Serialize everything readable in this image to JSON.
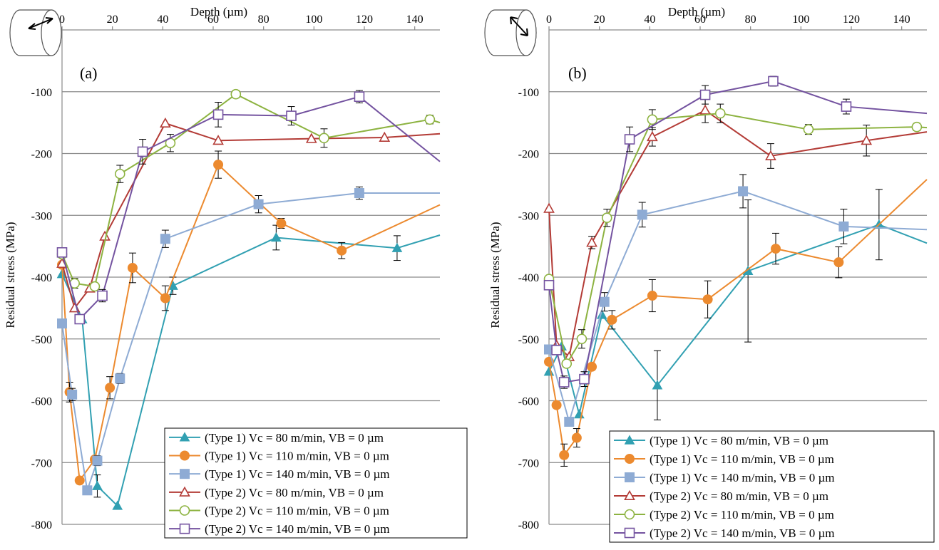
{
  "chart_data": [
    {
      "type": "line",
      "panel_label": "(a)",
      "xlabel": "Depth (µm)",
      "ylabel": "Residual stress (MPa)",
      "xlim": [
        0,
        150
      ],
      "ylim": [
        -800,
        0
      ],
      "xticks": [
        "0",
        "20",
        "40",
        "60",
        "80",
        "100",
        "120",
        "140"
      ],
      "yticks": [
        "-100",
        "-200",
        "-300",
        "-400",
        "-500",
        "-600",
        "-700",
        "-800"
      ],
      "grid": "horizontal",
      "x_axis_position": "top",
      "legend_position": "bottom-right",
      "series": [
        {
          "name": "(Type 1) Vc = 80 m/min, VB = 0 µm",
          "color": "#31a0b2",
          "marker": "triangle-filled",
          "points": [
            [
              0,
              -395
            ],
            [
              8,
              -468
            ],
            [
              14,
              -738
            ],
            [
              22,
              -770
            ],
            [
              44,
              -414
            ],
            [
              85,
              -336
            ],
            [
              133,
              -353
            ],
            [
              150,
              -332
            ]
          ],
          "errors": [
            0,
            0,
            18,
            0,
            14,
            20,
            20,
            0
          ]
        },
        {
          "name": "(Type 1) Vc = 110 m/min, VB = 0 µm",
          "color": "#ec8a2f",
          "marker": "circle-filled",
          "points": [
            [
              0,
              -380
            ],
            [
              3,
              -586
            ],
            [
              7,
              -729
            ],
            [
              13,
              -695
            ],
            [
              19,
              -579
            ],
            [
              28,
              -385
            ],
            [
              41,
              -434
            ],
            [
              62,
              -218
            ],
            [
              87,
              -313
            ],
            [
              111,
              -357
            ],
            [
              150,
              -283
            ]
          ],
          "errors": [
            0,
            16,
            0,
            0,
            18,
            24,
            20,
            22,
            8,
            13,
            0
          ]
        },
        {
          "name": "(Type 1) Vc = 140 m/min, VB = 0 µm",
          "color": "#8eabd4",
          "marker": "square-filled",
          "points": [
            [
              0,
              -475
            ],
            [
              4,
              -590
            ],
            [
              10,
              -745
            ],
            [
              14,
              -697
            ],
            [
              23,
              -564
            ],
            [
              41,
              -338
            ],
            [
              78,
              -282
            ],
            [
              118,
              -264
            ],
            [
              150,
              -264
            ]
          ],
          "errors": [
            0,
            10,
            0,
            8,
            8,
            14,
            14,
            10,
            0
          ]
        },
        {
          "name": "(Type 2) Vc = 80 m/min, VB = 0 µm",
          "color": "#b33b36",
          "marker": "triangle-open",
          "points": [
            [
              0,
              -378
            ],
            [
              5,
              -450
            ],
            [
              11,
              -418
            ],
            [
              17,
              -334
            ],
            [
              41,
              -151
            ],
            [
              62,
              -179
            ],
            [
              99,
              -176
            ],
            [
              128,
              -174
            ],
            [
              150,
              -168
            ]
          ],
          "errors": [
            0,
            0,
            0,
            0,
            0,
            0,
            0,
            0,
            0
          ]
        },
        {
          "name": "(Type 2) Vc = 110 m/min, VB = 0 µm",
          "color": "#8db341",
          "marker": "circle-open",
          "points": [
            [
              0,
              -363
            ],
            [
              5,
              -410
            ],
            [
              13,
              -415
            ],
            [
              23,
              -233
            ],
            [
              43,
              -183
            ],
            [
              69,
              -104
            ],
            [
              104,
              -175
            ],
            [
              146,
              -145
            ],
            [
              150,
              -150
            ]
          ],
          "errors": [
            0,
            8,
            0,
            14,
            14,
            6,
            15,
            7,
            0
          ]
        },
        {
          "name": "(Type 2) Vc = 140 m/min, VB = 0 µm",
          "color": "#7453a0",
          "marker": "square-open",
          "points": [
            [
              0,
              -360
            ],
            [
              7,
              -468
            ],
            [
              16,
              -430
            ],
            [
              32,
              -197
            ],
            [
              62,
              -137
            ],
            [
              91,
              -139
            ],
            [
              118,
              -108
            ],
            [
              150,
              -213
            ]
          ],
          "errors": [
            0,
            0,
            10,
            20,
            20,
            15,
            10,
            0
          ]
        }
      ]
    },
    {
      "type": "line",
      "panel_label": "(b)",
      "xlabel": "Depth (µm)",
      "ylabel": "Residual stress (MPa)",
      "xlim": [
        0,
        150
      ],
      "ylim": [
        -800,
        0
      ],
      "xticks": [
        "0",
        "20",
        "40",
        "60",
        "80",
        "100",
        "120",
        "140"
      ],
      "yticks": [
        "-100",
        "-200",
        "-300",
        "-400",
        "-500",
        "-600",
        "-700",
        "-800"
      ],
      "grid": "horizontal",
      "x_axis_position": "top",
      "legend_position": "bottom-right",
      "series": [
        {
          "name": "(Type 1) Vc = 80 m/min, VB = 0 µm",
          "color": "#31a0b2",
          "marker": "triangle-filled",
          "points": [
            [
              0,
              -553
            ],
            [
              5,
              -512
            ],
            [
              12,
              -622
            ],
            [
              21,
              -461
            ],
            [
              43,
              -575
            ],
            [
              79,
              -390
            ],
            [
              131,
              -315
            ],
            [
              150,
              -345
            ]
          ],
          "errors": [
            0,
            0,
            0,
            0,
            56,
            115,
            57,
            0
          ]
        },
        {
          "name": "(Type 1) Vc = 110 m/min, VB = 0 µm",
          "color": "#ec8a2f",
          "marker": "circle-filled",
          "points": [
            [
              0,
              -537
            ],
            [
              3,
              -607
            ],
            [
              6,
              -688
            ],
            [
              11,
              -660
            ],
            [
              17,
              -545
            ],
            [
              25,
              -469
            ],
            [
              41,
              -430
            ],
            [
              63,
              -436
            ],
            [
              90,
              -354
            ],
            [
              115,
              -376
            ],
            [
              150,
              -242
            ]
          ],
          "errors": [
            0,
            0,
            18,
            15,
            0,
            15,
            26,
            30,
            25,
            25,
            0
          ]
        },
        {
          "name": "(Type 1) Vc = 140 m/min, VB = 0 µm",
          "color": "#8eabd4",
          "marker": "square-filled",
          "points": [
            [
              0,
              -517
            ],
            [
              8,
              -634
            ],
            [
              22,
              -440
            ],
            [
              37,
              -299
            ],
            [
              77,
              -261
            ],
            [
              117,
              -318
            ],
            [
              150,
              -323
            ]
          ],
          "errors": [
            0,
            0,
            15,
            20,
            27,
            28,
            0
          ]
        },
        {
          "name": "(Type 2) Vc = 80 m/min, VB = 0 µm",
          "color": "#b33b36",
          "marker": "triangle-open",
          "points": [
            [
              0,
              -289
            ],
            [
              3,
              -510
            ],
            [
              8,
              -529
            ],
            [
              17,
              -344
            ],
            [
              41,
              -173
            ],
            [
              62,
              -130
            ],
            [
              88,
              -204
            ],
            [
              126,
              -179
            ],
            [
              150,
              -165
            ]
          ],
          "errors": [
            0,
            0,
            0,
            10,
            15,
            20,
            20,
            25,
            0
          ]
        },
        {
          "name": "(Type 2) Vc = 110 m/min, VB = 0 µm",
          "color": "#8db341",
          "marker": "circle-open",
          "points": [
            [
              0,
              -403
            ],
            [
              7,
              -540
            ],
            [
              13,
              -500
            ],
            [
              23,
              -304
            ],
            [
              41,
              -145
            ],
            [
              68,
              -135
            ],
            [
              103,
              -161
            ],
            [
              146,
              -157
            ],
            [
              150,
              -158
            ]
          ],
          "errors": [
            0,
            0,
            15,
            14,
            16,
            15,
            8,
            6,
            0
          ]
        },
        {
          "name": "(Type 2) Vc = 140 m/min, VB = 0 µm",
          "color": "#7453a0",
          "marker": "square-open",
          "points": [
            [
              0,
              -413
            ],
            [
              3,
              -518
            ],
            [
              6,
              -570
            ],
            [
              14,
              -565
            ],
            [
              32,
              -177
            ],
            [
              62,
              -105
            ],
            [
              89,
              -83
            ],
            [
              118,
              -124
            ],
            [
              150,
              -135
            ]
          ],
          "errors": [
            0,
            0,
            10,
            12,
            20,
            15,
            8,
            12,
            0
          ]
        }
      ]
    }
  ]
}
